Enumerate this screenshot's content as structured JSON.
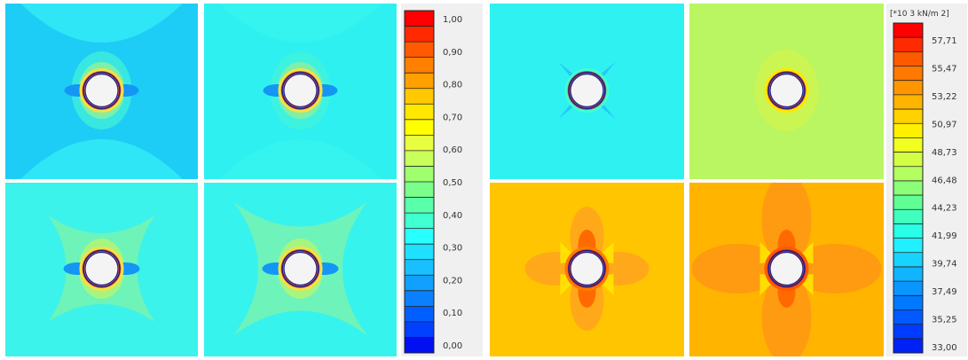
{
  "chart_data": [
    {
      "type": "heatmap",
      "title": "",
      "panel_count": 4,
      "colorbar": {
        "unit": "",
        "ticks": [
          "1,00",
          "0,90",
          "0,80",
          "0,70",
          "0,60",
          "0,50",
          "0,40",
          "0,30",
          "0,20",
          "0,10",
          "0,00"
        ],
        "range": [
          0,
          1
        ],
        "colors": [
          "#ff0000",
          "#ff2a00",
          "#ff5a00",
          "#ff8000",
          "#ffa000",
          "#ffc800",
          "#ffe800",
          "#ffff00",
          "#e8ff40",
          "#c8ff5a",
          "#a0ff6e",
          "#7aff8a",
          "#5affaa",
          "#40ffd0",
          "#28ffff",
          "#20e0ff",
          "#18c0ff",
          "#10a0ff",
          "#0a80ff",
          "#0060ff",
          "#0040ff",
          "#0010f0"
        ]
      }
    },
    {
      "type": "heatmap",
      "title": "",
      "panel_count": 4,
      "colorbar": {
        "unit": "[*10 3 kN/m 2]",
        "ticks": [
          "57,71",
          "55,47",
          "53,22",
          "50,97",
          "48,73",
          "46,48",
          "44,23",
          "41,99",
          "39,74",
          "37,49",
          "35,25",
          "33,00"
        ],
        "range": [
          33.0,
          58.8
        ],
        "colors": [
          "#ff0000",
          "#ff2a00",
          "#ff5a00",
          "#ff7800",
          "#ff9600",
          "#ffb400",
          "#ffd200",
          "#fff000",
          "#f0ff20",
          "#d2ff46",
          "#b4ff60",
          "#8cff78",
          "#60ff96",
          "#40ffbe",
          "#28ffe6",
          "#20f0ff",
          "#18d2ff",
          "#10b4ff",
          "#0a96ff",
          "#0078ff",
          "#005aff",
          "#003cff",
          "#0020f8"
        ]
      }
    }
  ],
  "panels": [
    {
      "bg": "#1ecdf5",
      "style": "hourglass",
      "bulb": "#33f7e6",
      "ring": "#f3e246"
    },
    {
      "bg": "#2ff0f0",
      "style": "hourglass_faint",
      "bulb": "#37f5e9",
      "ring": "#f3e246"
    },
    {
      "bg": "#3bf3ea",
      "style": "bow",
      "bulb": "#5df2c8",
      "ring": "#f3e246"
    },
    {
      "bg": "#37f3ed",
      "style": "bow_large",
      "bulb": "#69f2bf",
      "ring": "#f3e246"
    },
    {
      "bg": "#2ff1f1",
      "style": "star",
      "bulb": "#3ff0e5",
      "ring": "#40ffd0"
    },
    {
      "bg": "#b9f661",
      "style": "cross_faint",
      "bulb": "#d7f648",
      "ring": "#ffe800"
    },
    {
      "bg": "#ffc500",
      "style": "clover",
      "bulb": "#ffad19",
      "ring": "#ff7a00"
    },
    {
      "bg": "#ffb400",
      "style": "clover_large",
      "bulb": "#ff9a19",
      "ring": "#ff5a00"
    }
  ]
}
